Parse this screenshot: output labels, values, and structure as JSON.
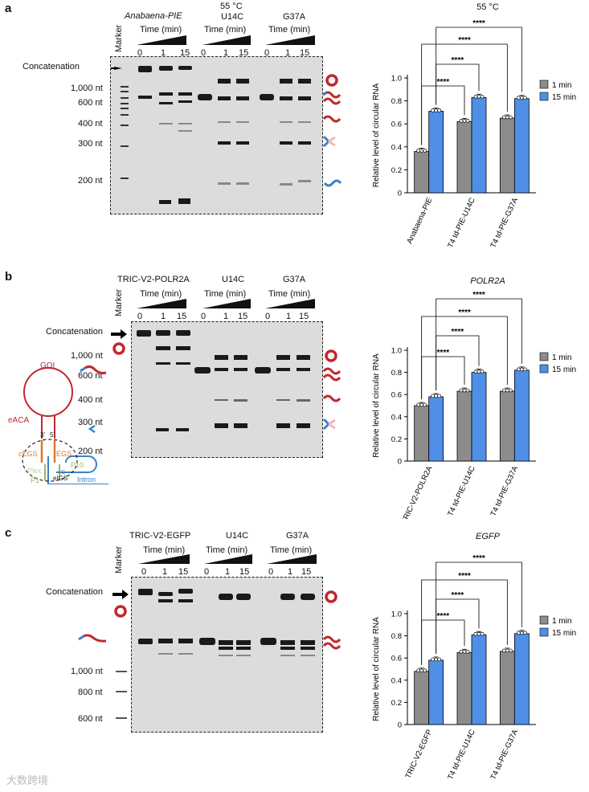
{
  "colors": {
    "grey": "#8c8c8c",
    "blue": "#4f8fe8",
    "dark": "#222222",
    "red": "#c0282c",
    "orange": "#e07a2a",
    "green": "#8fbf5f",
    "teal": "#3b82c4"
  },
  "panels": [
    {
      "letter": "a",
      "header": "55 °C",
      "marker_label": "Marker",
      "groups": [
        {
          "label": "Anabaena-PIE",
          "italic": "Anabaena"
        },
        {
          "label": "U14C"
        },
        {
          "label": "G37A"
        }
      ],
      "time_label": "Time (min)",
      "times": [
        "0",
        "1",
        "15"
      ],
      "size_labels": [
        "Concatenation",
        "1,000 nt",
        "600 nt",
        "400 nt",
        "300 nt",
        "200 nt"
      ],
      "chart_title": "55 °C"
    },
    {
      "letter": "b",
      "marker_label": "Marker",
      "groups": [
        {
          "label": "TRIC-V2-POLR2A"
        },
        {
          "label": "U14C"
        },
        {
          "label": "G37A"
        }
      ],
      "time_label": "Time (min)",
      "times": [
        "0",
        "1",
        "15"
      ],
      "size_labels": [
        "Concatenation",
        "1,000 nt",
        "600 nt",
        "400 nt",
        "300 nt",
        "200 nt"
      ],
      "chart_title": "POLR2A"
    },
    {
      "letter": "c",
      "marker_label": "Marker",
      "groups": [
        {
          "label": "TRIC-V2-EGFP"
        },
        {
          "label": "U14C"
        },
        {
          "label": "G37A"
        }
      ],
      "time_label": "Time (min)",
      "times": [
        "0",
        "1",
        "15"
      ],
      "size_labels": [
        "Concatenation",
        "1,000 nt",
        "800 nt",
        "600 nt"
      ],
      "chart_title": "EGFP"
    }
  ],
  "diagram": {
    "labels": [
      "GOI",
      "eACA",
      "3'",
      "5'",
      "cEGS",
      "EGS",
      "P10",
      "Plex",
      "P1",
      "G",
      "eIGS",
      "Intron"
    ]
  },
  "watermark": "大数跨境",
  "chart_data": [
    {
      "type": "bar",
      "title": "55 °C",
      "ylabel": "Relative level of circular RNA",
      "ylim": [
        0,
        1.0
      ],
      "yticks": [
        "0",
        "0.2",
        "0.4",
        "0.6",
        "0.8",
        "1.0"
      ],
      "categories": [
        "Anabaena-PIE",
        "T4 td-PIE-U14C",
        "T4 td-PIE-G37A"
      ],
      "series": [
        {
          "name": "1 min",
          "values": [
            0.36,
            0.62,
            0.65
          ]
        },
        {
          "name": "15 min",
          "values": [
            0.71,
            0.83,
            0.82
          ]
        }
      ],
      "legend": "top-right",
      "significance": "****"
    },
    {
      "type": "bar",
      "title": "POLR2A",
      "ylabel": "Relative level of circular RNA",
      "ylim": [
        0,
        1.0
      ],
      "yticks": [
        "0",
        "0.2",
        "0.4",
        "0.6",
        "0.8",
        "1.0"
      ],
      "categories": [
        "TRIC-V2-POLR2A",
        "T4 td-PIE-U14C",
        "T4 td-PIE-G37A"
      ],
      "series": [
        {
          "name": "1 min",
          "values": [
            0.5,
            0.63,
            0.63
          ]
        },
        {
          "name": "15 min",
          "values": [
            0.58,
            0.8,
            0.82
          ]
        }
      ],
      "legend": "top-right",
      "significance": "****"
    },
    {
      "type": "bar",
      "title": "EGFP",
      "ylabel": "Relative level of circular RNA",
      "ylim": [
        0,
        1.0
      ],
      "yticks": [
        "0",
        "0.2",
        "0.4",
        "0.6",
        "0.8",
        "1.0"
      ],
      "categories": [
        "TRIC-V2-EGFP",
        "T4 td-PIE-U14C",
        "T4 td-PIE-G37A"
      ],
      "series": [
        {
          "name": "1 min",
          "values": [
            0.48,
            0.65,
            0.66
          ]
        },
        {
          "name": "15 min",
          "values": [
            0.58,
            0.81,
            0.82
          ]
        }
      ],
      "legend": "top-right",
      "significance": "****"
    }
  ]
}
